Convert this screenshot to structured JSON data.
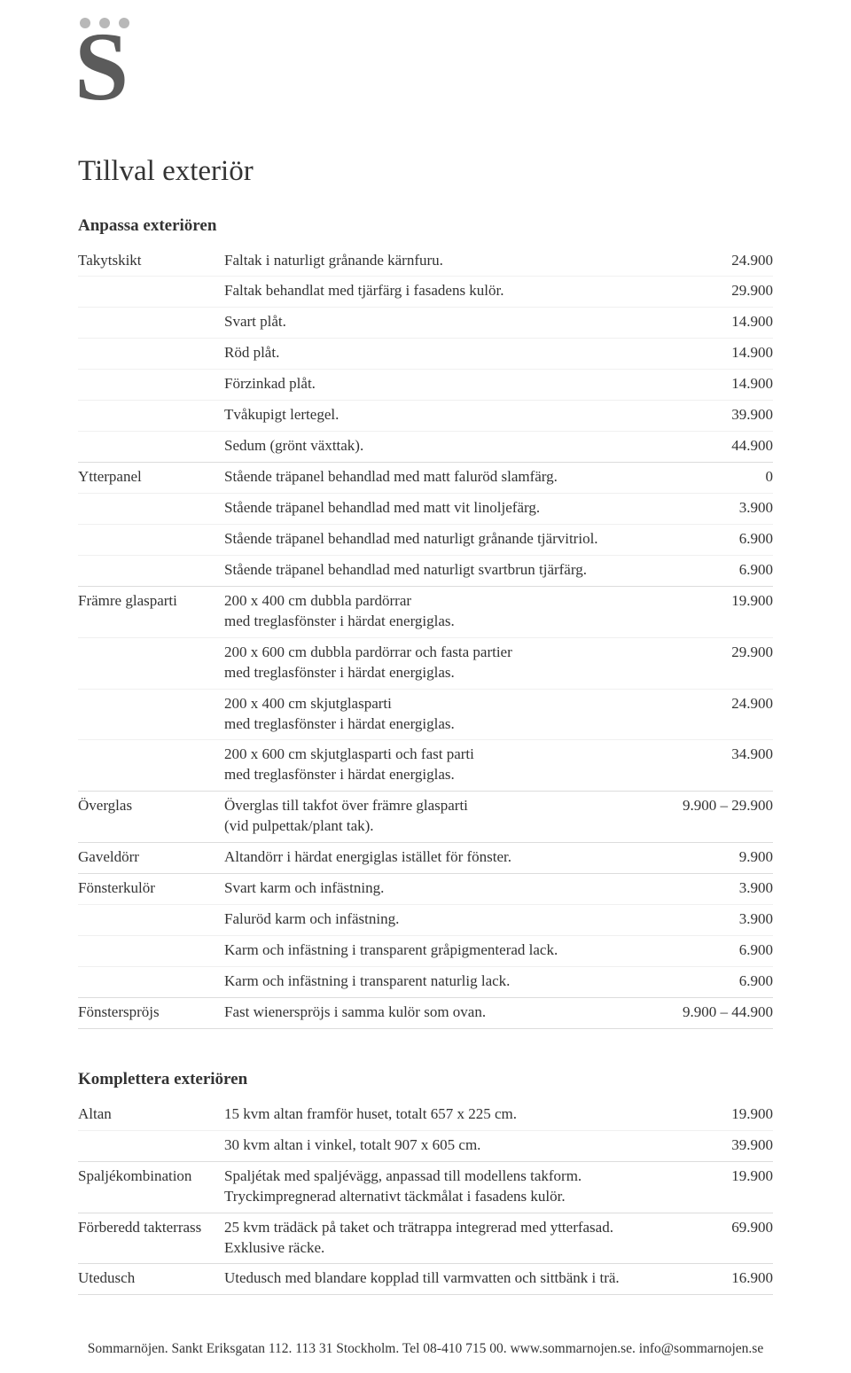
{
  "logo": {
    "letter": "S"
  },
  "page": {
    "title": "Tillval exteriör"
  },
  "section1": {
    "heading": "Anpassa exteriören",
    "groups": [
      {
        "category": "Takytskikt",
        "rows": [
          {
            "desc": "Faltak i naturligt grånande kärnfuru.",
            "price": "24.900"
          },
          {
            "desc": "Faltak behandlat med tjärfärg i fasadens kulör.",
            "price": "29.900"
          },
          {
            "desc": "Svart plåt.",
            "price": "14.900"
          },
          {
            "desc": "Röd plåt.",
            "price": "14.900"
          },
          {
            "desc": "Förzinkad plåt.",
            "price": "14.900"
          },
          {
            "desc": "Tvåkupigt lertegel.",
            "price": "39.900"
          },
          {
            "desc": "Sedum (grönt växttak).",
            "price": "44.900"
          }
        ]
      },
      {
        "category": "Ytterpanel",
        "rows": [
          {
            "desc": "Stående träpanel behandlad med matt faluröd slamfärg.",
            "price": "0"
          },
          {
            "desc": "Stående träpanel behandlad med matt vit linoljefärg.",
            "price": "3.900"
          },
          {
            "desc": "Stående träpanel behandlad med naturligt grånande tjärvitriol.",
            "price": "6.900"
          },
          {
            "desc": "Stående träpanel behandlad med naturligt svartbrun tjärfärg.",
            "price": "6.900"
          }
        ]
      },
      {
        "category": "Främre glasparti",
        "rows": [
          {
            "desc": "200 x 400 cm dubbla pardörrar\nmed treglasfönster i härdat energiglas.",
            "price": "19.900"
          },
          {
            "desc": "200 x 600 cm dubbla pardörrar och fasta partier\nmed treglasfönster i härdat energiglas.",
            "price": "29.900"
          },
          {
            "desc": "200 x 400 cm skjutglasparti\nmed treglasfönster i härdat energiglas.",
            "price": "24.900"
          },
          {
            "desc": "200 x 600 cm skjutglasparti och fast parti\nmed treglasfönster i härdat energiglas.",
            "price": "34.900"
          }
        ]
      },
      {
        "category": "Överglas",
        "rows": [
          {
            "desc": "Överglas till takfot över främre glasparti\n(vid pulpettak/plant tak).",
            "price": "9.900 – 29.900"
          }
        ]
      },
      {
        "category": "Gaveldörr",
        "rows": [
          {
            "desc": "Altandörr i härdat energiglas istället för fönster.",
            "price": "9.900"
          }
        ]
      },
      {
        "category": "Fönsterkulör",
        "rows": [
          {
            "desc": "Svart karm och infästning.",
            "price": "3.900"
          },
          {
            "desc": "Faluröd karm och infästning.",
            "price": "3.900"
          },
          {
            "desc": "Karm och infästning i transparent gråpigmenterad lack.",
            "price": "6.900"
          },
          {
            "desc": "Karm och infästning i transparent naturlig lack.",
            "price": "6.900"
          }
        ]
      },
      {
        "category": "Fönsterspröjs",
        "rows": [
          {
            "desc": "Fast wienerspröjs i samma kulör som ovan.",
            "price": "9.900 – 44.900"
          }
        ]
      }
    ]
  },
  "section2": {
    "heading": "Komplettera exteriören",
    "groups": [
      {
        "category": "Altan",
        "rows": [
          {
            "desc": "15 kvm altan framför huset, totalt 657 x 225 cm.",
            "price": "19.900"
          },
          {
            "desc": "30 kvm altan i vinkel, totalt 907 x 605 cm.",
            "price": "39.900"
          }
        ]
      },
      {
        "category": "Spaljékombination",
        "rows": [
          {
            "desc": "Spaljétak med spaljévägg, anpassad till modellens takform.\nTryckimpregnerad alternativt täckmålat i fasadens kulör.",
            "price": "19.900"
          }
        ]
      },
      {
        "category": "Förberedd takterrass",
        "rows": [
          {
            "desc": "25 kvm trädäck på taket och trätrappa integrerad med ytterfasad.\nExklusive räcke.",
            "price": "69.900"
          }
        ]
      },
      {
        "category": "Utedusch",
        "rows": [
          {
            "desc": "Utedusch med blandare kopplad till varmvatten och sittbänk i trä.",
            "price": "16.900"
          }
        ]
      }
    ]
  },
  "footer": {
    "text": "Sommarnöjen. Sankt Eriksgatan 112. 113 31 Stockholm. Tel 08-410 715 00. www.sommarnojen.se. info@sommarnojen.se"
  }
}
